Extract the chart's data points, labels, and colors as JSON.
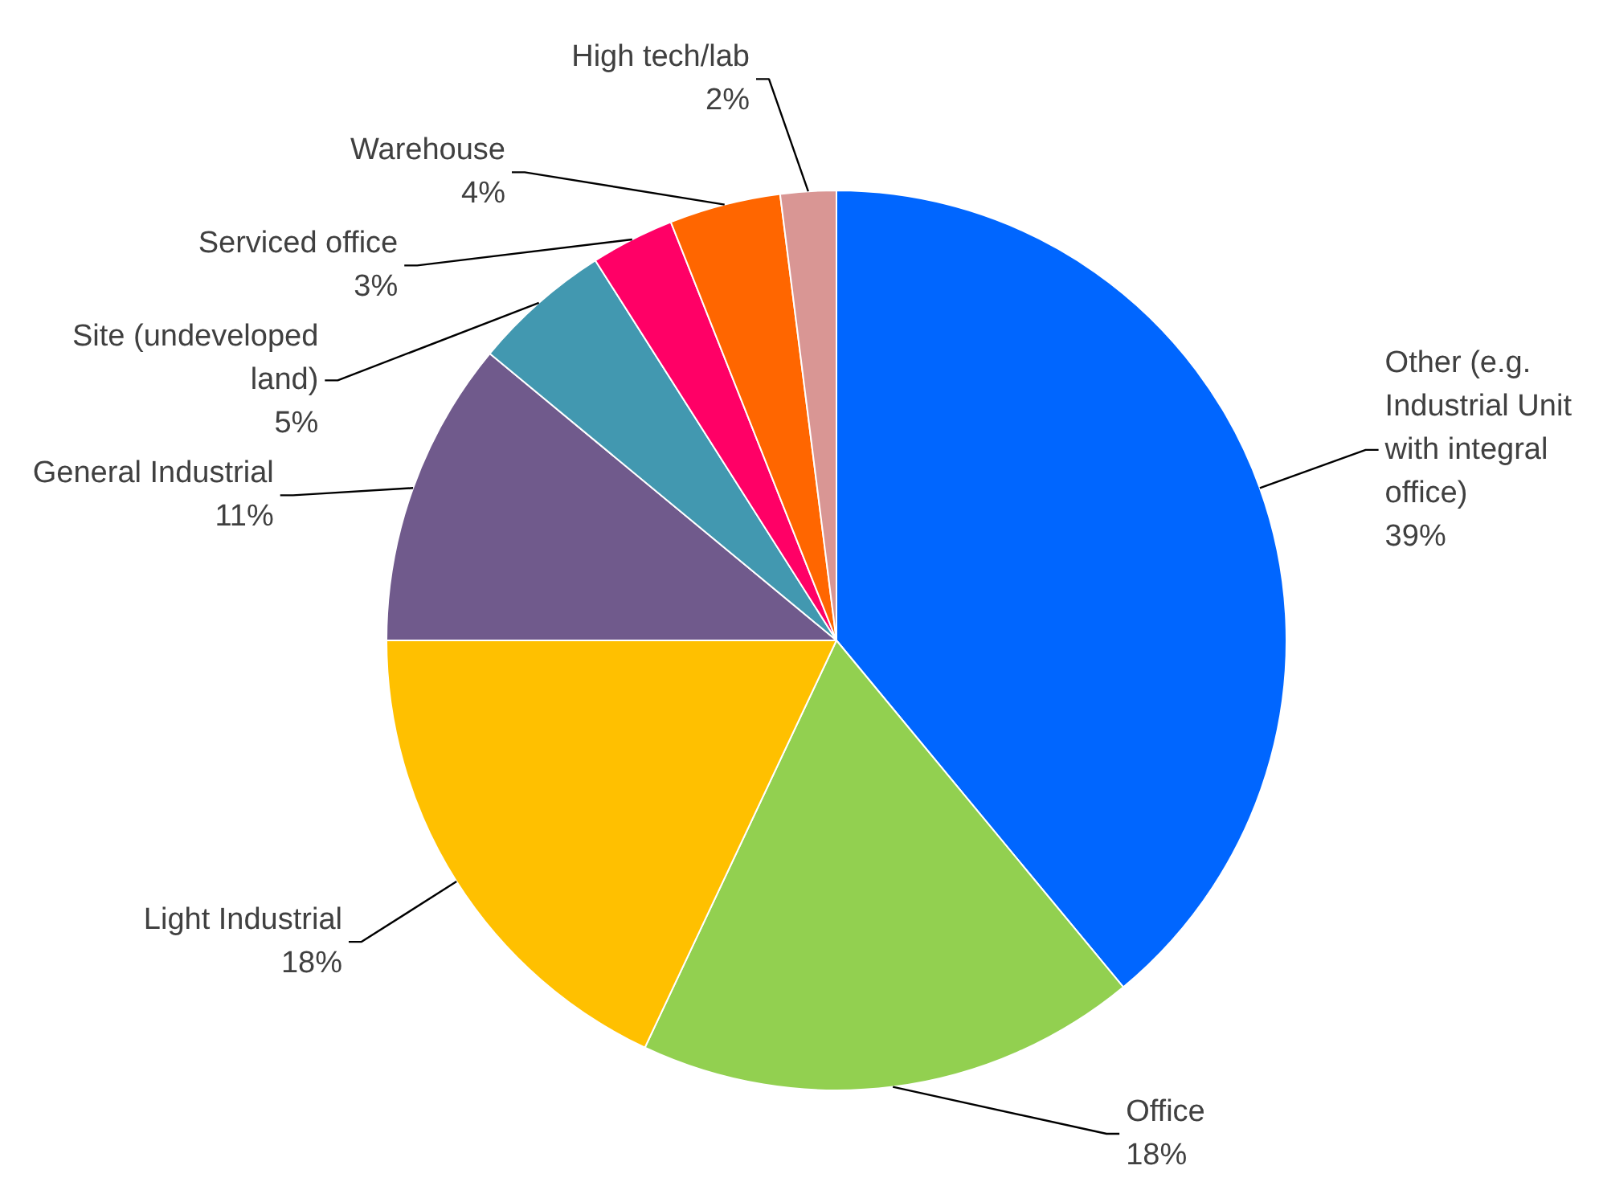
{
  "chart_data": {
    "type": "pie",
    "value_labels": [
      "39%",
      "18%",
      "18%",
      "11%",
      "5%",
      "3%",
      "4%",
      "2%"
    ],
    "categories": [
      "Other (e.g. Industrial Unit with integral office)",
      "Office",
      "Light Industrial",
      "General Industrial",
      "Site (undeveloped land)",
      "Serviced office",
      "Warehouse",
      "High tech/lab"
    ],
    "values": [
      39,
      18,
      18,
      11,
      5,
      3,
      4,
      2
    ],
    "colors": [
      "#0066ff",
      "#92d050",
      "#ffc000",
      "#705a8c",
      "#4298b0",
      "#ff0066",
      "#ff6600",
      "#d99694"
    ]
  }
}
